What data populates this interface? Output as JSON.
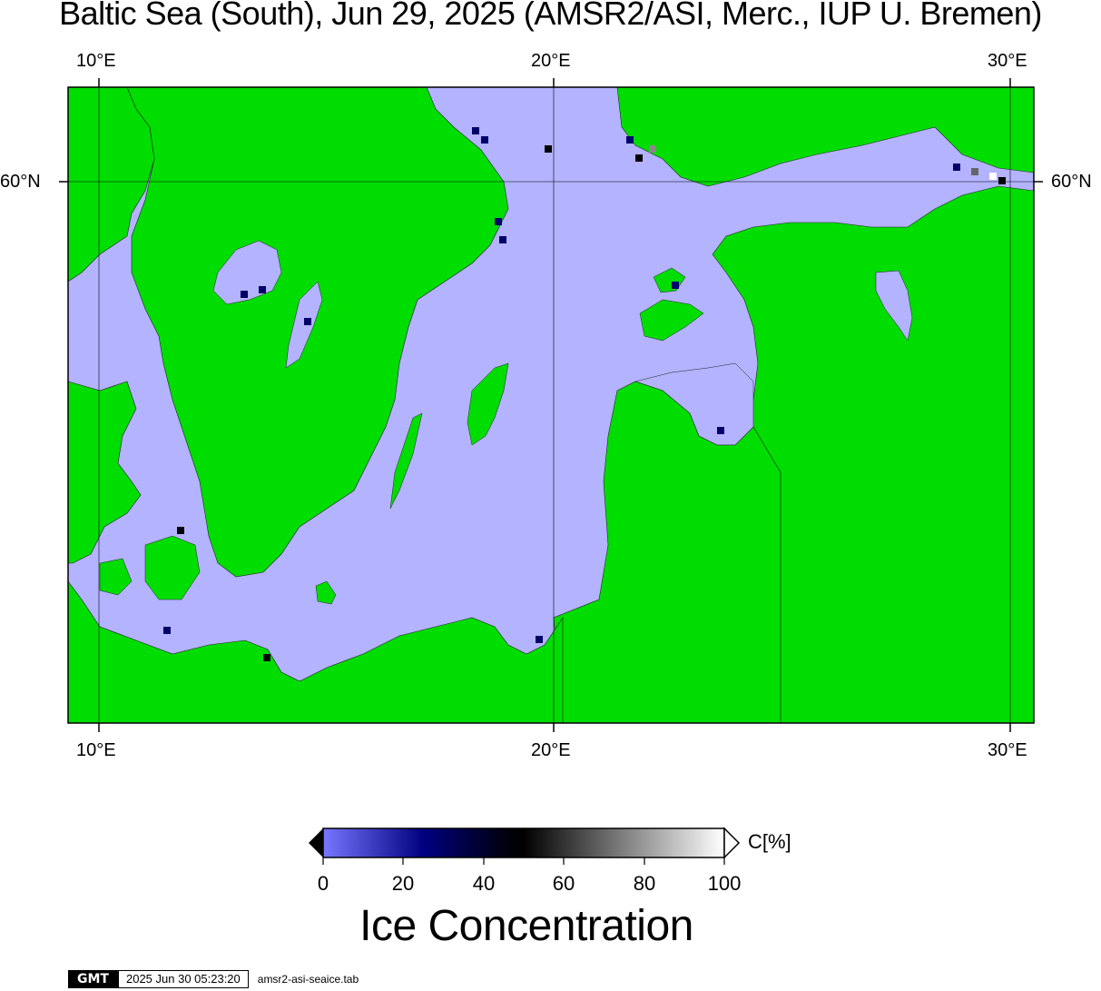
{
  "title": "Baltic Sea (South), Jun 29, 2025 (AMSR2/ASI, Merc., IUP U. Bremen)",
  "map": {
    "lon_ticks": [
      "10°E",
      "20°E",
      "30°E"
    ],
    "lat_ticks": [
      "60°N"
    ],
    "colors": {
      "land": "#00dd00",
      "open_water": "#b3b3ff",
      "frame": "#000000"
    }
  },
  "colorbar": {
    "title": "Ice Concentration",
    "unit": "C[%]",
    "ticks": [
      "0",
      "20",
      "40",
      "60",
      "80",
      "100"
    ],
    "colors": [
      "#7777ff",
      "#000080",
      "#000000",
      "#ffffff"
    ]
  },
  "footer": {
    "logo": "GMT",
    "timestamp": "2025 Jun 30 05:23:20",
    "filename": "amsr2-asi-seaice.tab"
  }
}
